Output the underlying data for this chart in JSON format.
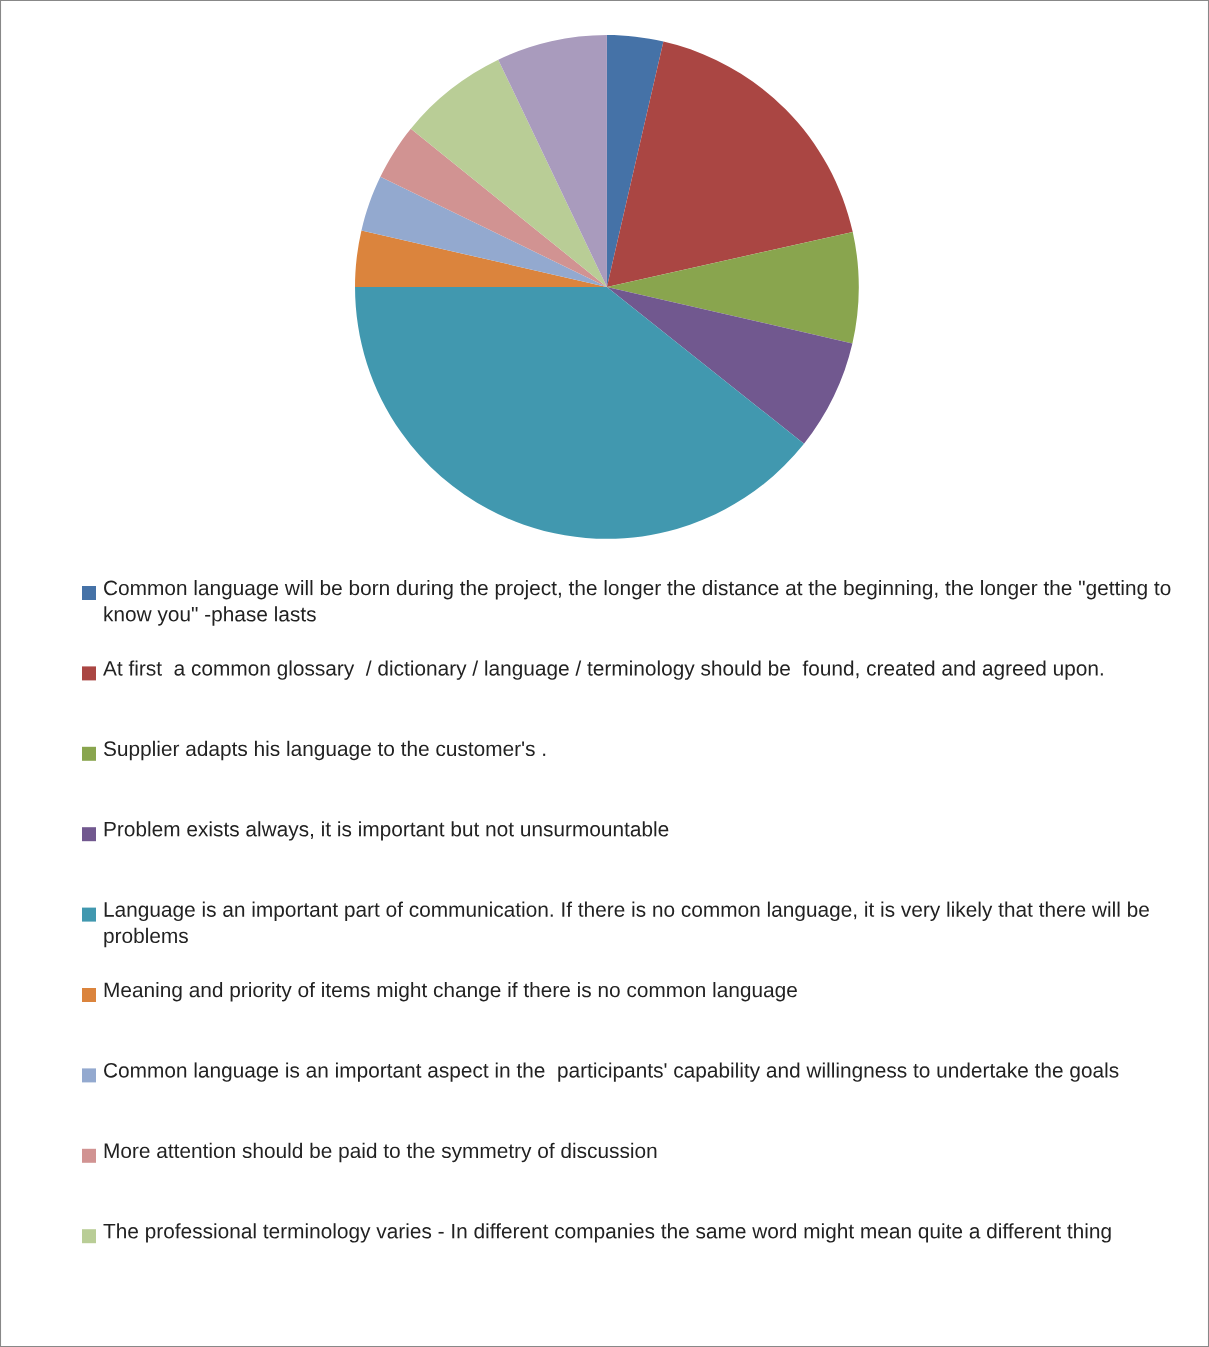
{
  "chart_data": {
    "type": "pie",
    "legend": "bottom",
    "categories": [
      "Common language will be born during the project, the longer the distance at the beginning, the longer the \"getting to know you\" -phase lasts",
      "At first  a common glossary  / dictionary / language / terminology should be  found, created and agreed upon.",
      "Supplier adapts his language to the customer's .",
      "Problem exists always, it is important but not unsurmountable",
      "Language is an important part of communication. If there is no common language, it is very likely that there will be problems",
      "Meaning and priority of items might change if there is no common language",
      "Common language is an important aspect in the  participants' capability and willingness to undertake the goals",
      "More attention should be paid to the symmetry of discussion",
      "The professional terminology varies - In different companies the same word might mean quite a different thing",
      null
    ],
    "values": [
      3.6,
      17.9,
      7.1,
      7.1,
      39.3,
      3.6,
      3.6,
      3.6,
      7.1,
      7.1
    ],
    "colors": [
      "#4572a7",
      "#aa4643",
      "#89a54e",
      "#71588f",
      "#4198af",
      "#db843d",
      "#93a9cf",
      "#d19392",
      "#b9cd96",
      "#a99bbd"
    ]
  }
}
